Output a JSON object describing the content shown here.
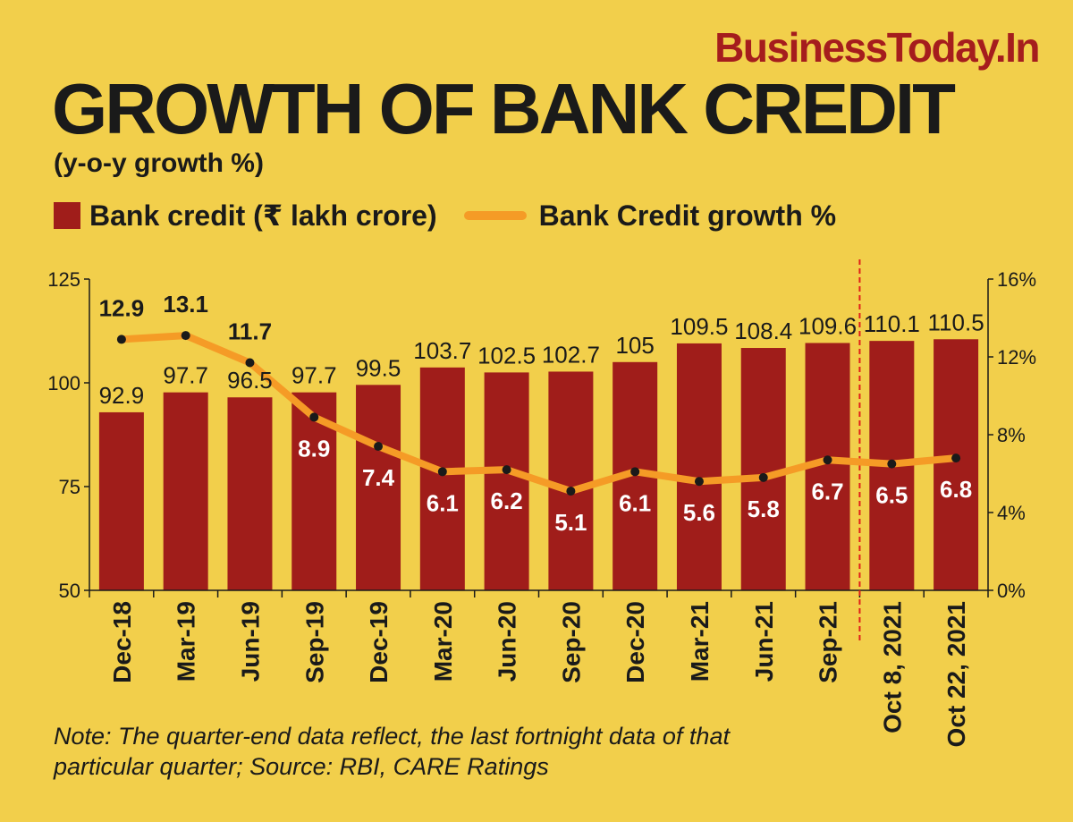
{
  "brand": "BusinessToday.In",
  "title": "GROWTH OF BANK CREDIT",
  "subtitle": "(y-o-y growth %)",
  "legend": {
    "bar_label": "Bank credit (₹ lakh crore)",
    "line_label": "Bank Credit growth %"
  },
  "note": "Note: The quarter-end data reflect, the last fortnight data of that particular quarter; Source: RBI, CARE Ratings",
  "colors": {
    "background": "#f2cf4b",
    "bar": "#a01d1a",
    "line": "#f59b26",
    "marker": "#1a1a1a",
    "divider": "#e0201a",
    "brand": "#a51d1d"
  },
  "chart_data": {
    "type": "bar",
    "categories": [
      "Dec-18",
      "Mar-19",
      "Jun-19",
      "Sep-19",
      "Dec-19",
      "Mar-20",
      "Jun-20",
      "Sep-20",
      "Dec-20",
      "Mar-21",
      "Jun-21",
      "Sep-21",
      "Oct 8, 2021",
      "Oct 22, 2021"
    ],
    "series": [
      {
        "name": "Bank credit (₹ lakh crore)",
        "type": "bar",
        "axis": "left",
        "values": [
          92.9,
          97.7,
          96.5,
          97.7,
          99.5,
          103.7,
          102.5,
          102.7,
          105,
          109.5,
          108.4,
          109.6,
          110.1,
          110.5
        ],
        "labels": [
          "92.9",
          "97.7",
          "96.5",
          "97.7",
          "99.5",
          "103.7",
          "102.5",
          "102.7",
          "105",
          "109.5",
          "108.4",
          "109.6",
          "110.1",
          "110.5"
        ]
      },
      {
        "name": "Bank Credit growth %",
        "type": "line",
        "axis": "right",
        "values": [
          12.9,
          13.1,
          11.7,
          8.9,
          7.4,
          6.1,
          6.2,
          5.1,
          6.1,
          5.6,
          5.8,
          6.7,
          6.5,
          6.8
        ],
        "labels": [
          "12.9",
          "13.1",
          "11.7",
          "8.9",
          "7.4",
          "6.1",
          "6.2",
          "5.1",
          "6.1",
          "5.6",
          "5.8",
          "6.7",
          "6.5",
          "6.8"
        ]
      }
    ],
    "y_left": {
      "min": 50,
      "max": 125,
      "ticks": [
        "125",
        "100",
        "75",
        "50"
      ],
      "tick_values": [
        125,
        100,
        75,
        50
      ]
    },
    "y_right": {
      "min": 0,
      "max": 16,
      "ticks": [
        "16%",
        "12%",
        "8%",
        "4%",
        "0%"
      ],
      "tick_values": [
        16,
        12,
        8,
        4,
        0
      ]
    },
    "divider_between": [
      "Sep-21",
      "Oct 8, 2021"
    ],
    "grid": false
  }
}
